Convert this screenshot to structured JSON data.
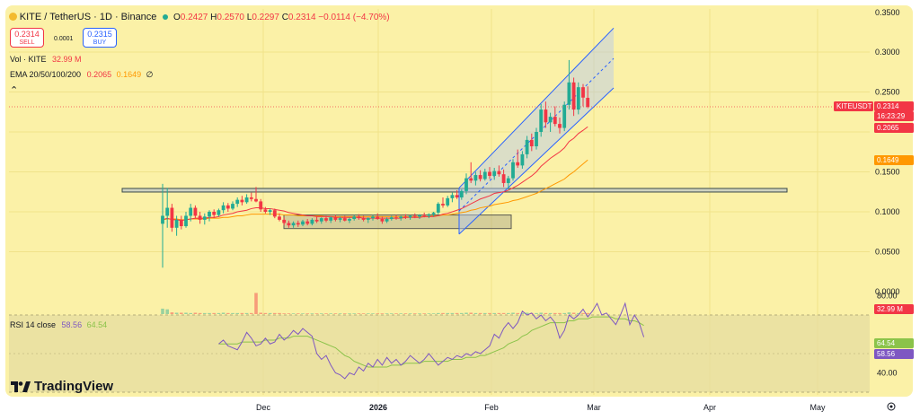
{
  "header": {
    "symbol_title": "KITE / TetherUS · 1D · Binance",
    "ohlc": [
      {
        "key": "O",
        "value": "0.2427"
      },
      {
        "key": "H",
        "value": "0.2570"
      },
      {
        "key": "L",
        "value": "0.2297"
      },
      {
        "key": "C",
        "value": "0.2314"
      }
    ],
    "change": "−0.0114 (−4.70%)"
  },
  "trade": {
    "sell_price": "0.2314",
    "sell_label": "SELL",
    "spread": "0.0001",
    "buy_price": "0.2315",
    "buy_label": "BUY"
  },
  "indicators": {
    "vol_label": "Vol · KITE",
    "vol_value": "32.99 M",
    "ema_label": "EMA 20/50/100/200",
    "ema20_value": "0.2065",
    "ema50_value": "0.1649",
    "ema_rest": "∅",
    "collapse_glyph": "⌃"
  },
  "rsi": {
    "label": "RSI 14 close",
    "rsi_value": "58.56",
    "ma_value": "64.54",
    "ticks": [
      "80.00",
      "40.00"
    ]
  },
  "price_axis": {
    "ticks": [
      "0.3000",
      "0.2500",
      "0.1500",
      "0.1000",
      "0.0500",
      "0.0000"
    ],
    "partial_top": "0.3500"
  },
  "price_tags": {
    "symbol": "KITEUSDT",
    "price": "0.2314",
    "countdown": "16:23:29",
    "ema20": "0.2065",
    "ema50": "0.1649",
    "volume": "32.99 M",
    "rsi_ma": "64.54",
    "rsi": "58.56"
  },
  "time_axis": {
    "labels": [
      "Dec",
      "2026",
      "Feb",
      "Mar",
      "Apr",
      "May"
    ]
  },
  "branding": {
    "logo_text": "TradingView"
  },
  "colors": {
    "up": "#22ab94",
    "down": "#f23645",
    "ema20": "#f23645",
    "ema50": "#ff9800",
    "rsi_line": "#7e57c2",
    "rsi_ma": "#8bc34a",
    "channel": "#2962ff",
    "background": "#fbf1a7"
  },
  "chart_data": {
    "type": "candlestick",
    "pair": "KITE/USDT",
    "timeframe": "1D",
    "ylim": [
      0.0,
      0.35
    ],
    "candles": [
      {
        "o": 0.085,
        "h": 0.135,
        "l": 0.03,
        "c": 0.095
      },
      {
        "o": 0.095,
        "h": 0.13,
        "l": 0.08,
        "c": 0.105
      },
      {
        "o": 0.105,
        "h": 0.11,
        "l": 0.075,
        "c": 0.08
      },
      {
        "o": 0.08,
        "h": 0.095,
        "l": 0.07,
        "c": 0.09
      },
      {
        "o": 0.09,
        "h": 0.095,
        "l": 0.078,
        "c": 0.082
      },
      {
        "o": 0.082,
        "h": 0.1,
        "l": 0.08,
        "c": 0.095
      },
      {
        "o": 0.095,
        "h": 0.11,
        "l": 0.088,
        "c": 0.105
      },
      {
        "o": 0.105,
        "h": 0.108,
        "l": 0.092,
        "c": 0.095
      },
      {
        "o": 0.095,
        "h": 0.1,
        "l": 0.085,
        "c": 0.09
      },
      {
        "o": 0.09,
        "h": 0.098,
        "l": 0.084,
        "c": 0.094
      },
      {
        "o": 0.094,
        "h": 0.102,
        "l": 0.088,
        "c": 0.1
      },
      {
        "o": 0.1,
        "h": 0.103,
        "l": 0.092,
        "c": 0.096
      },
      {
        "o": 0.096,
        "h": 0.104,
        "l": 0.094,
        "c": 0.102
      },
      {
        "o": 0.102,
        "h": 0.112,
        "l": 0.098,
        "c": 0.108
      },
      {
        "o": 0.108,
        "h": 0.111,
        "l": 0.1,
        "c": 0.104
      },
      {
        "o": 0.104,
        "h": 0.113,
        "l": 0.102,
        "c": 0.11
      },
      {
        "o": 0.11,
        "h": 0.118,
        "l": 0.106,
        "c": 0.115
      },
      {
        "o": 0.115,
        "h": 0.12,
        "l": 0.108,
        "c": 0.112
      },
      {
        "o": 0.112,
        "h": 0.122,
        "l": 0.11,
        "c": 0.118
      },
      {
        "o": 0.118,
        "h": 0.124,
        "l": 0.113,
        "c": 0.116
      },
      {
        "o": 0.116,
        "h": 0.131,
        "l": 0.112,
        "c": 0.113
      },
      {
        "o": 0.113,
        "h": 0.116,
        "l": 0.1,
        "c": 0.103
      },
      {
        "o": 0.103,
        "h": 0.106,
        "l": 0.098,
        "c": 0.1
      },
      {
        "o": 0.1,
        "h": 0.104,
        "l": 0.096,
        "c": 0.102
      },
      {
        "o": 0.102,
        "h": 0.104,
        "l": 0.092,
        "c": 0.094
      },
      {
        "o": 0.094,
        "h": 0.098,
        "l": 0.088,
        "c": 0.09
      },
      {
        "o": 0.09,
        "h": 0.093,
        "l": 0.083,
        "c": 0.086
      },
      {
        "o": 0.086,
        "h": 0.089,
        "l": 0.08,
        "c": 0.083
      },
      {
        "o": 0.083,
        "h": 0.088,
        "l": 0.08,
        "c": 0.086
      },
      {
        "o": 0.086,
        "h": 0.089,
        "l": 0.081,
        "c": 0.084
      },
      {
        "o": 0.084,
        "h": 0.09,
        "l": 0.082,
        "c": 0.088
      },
      {
        "o": 0.088,
        "h": 0.091,
        "l": 0.083,
        "c": 0.085
      },
      {
        "o": 0.085,
        "h": 0.092,
        "l": 0.083,
        "c": 0.09
      },
      {
        "o": 0.09,
        "h": 0.094,
        "l": 0.086,
        "c": 0.088
      },
      {
        "o": 0.088,
        "h": 0.093,
        "l": 0.085,
        "c": 0.092
      },
      {
        "o": 0.092,
        "h": 0.095,
        "l": 0.087,
        "c": 0.089
      },
      {
        "o": 0.089,
        "h": 0.094,
        "l": 0.086,
        "c": 0.093
      },
      {
        "o": 0.093,
        "h": 0.096,
        "l": 0.088,
        "c": 0.09
      },
      {
        "o": 0.09,
        "h": 0.094,
        "l": 0.087,
        "c": 0.092
      },
      {
        "o": 0.092,
        "h": 0.095,
        "l": 0.088,
        "c": 0.089
      },
      {
        "o": 0.089,
        "h": 0.093,
        "l": 0.086,
        "c": 0.091
      },
      {
        "o": 0.091,
        "h": 0.096,
        "l": 0.089,
        "c": 0.094
      },
      {
        "o": 0.094,
        "h": 0.097,
        "l": 0.09,
        "c": 0.092
      },
      {
        "o": 0.092,
        "h": 0.095,
        "l": 0.088,
        "c": 0.09
      },
      {
        "o": 0.09,
        "h": 0.093,
        "l": 0.086,
        "c": 0.092
      },
      {
        "o": 0.092,
        "h": 0.096,
        "l": 0.089,
        "c": 0.094
      },
      {
        "o": 0.094,
        "h": 0.098,
        "l": 0.09,
        "c": 0.091
      },
      {
        "o": 0.091,
        "h": 0.094,
        "l": 0.085,
        "c": 0.088
      },
      {
        "o": 0.088,
        "h": 0.093,
        "l": 0.086,
        "c": 0.091
      },
      {
        "o": 0.091,
        "h": 0.095,
        "l": 0.089,
        "c": 0.093
      },
      {
        "o": 0.093,
        "h": 0.096,
        "l": 0.09,
        "c": 0.092
      },
      {
        "o": 0.092,
        "h": 0.095,
        "l": 0.089,
        "c": 0.094
      },
      {
        "o": 0.094,
        "h": 0.097,
        "l": 0.091,
        "c": 0.093
      },
      {
        "o": 0.093,
        "h": 0.096,
        "l": 0.09,
        "c": 0.095
      },
      {
        "o": 0.095,
        "h": 0.098,
        "l": 0.092,
        "c": 0.094
      },
      {
        "o": 0.094,
        "h": 0.097,
        "l": 0.091,
        "c": 0.096
      },
      {
        "o": 0.096,
        "h": 0.099,
        "l": 0.093,
        "c": 0.095
      },
      {
        "o": 0.095,
        "h": 0.098,
        "l": 0.092,
        "c": 0.097
      },
      {
        "o": 0.097,
        "h": 0.1,
        "l": 0.094,
        "c": 0.099
      },
      {
        "o": 0.099,
        "h": 0.112,
        "l": 0.097,
        "c": 0.11
      },
      {
        "o": 0.11,
        "h": 0.118,
        "l": 0.105,
        "c": 0.108
      },
      {
        "o": 0.108,
        "h": 0.12,
        "l": 0.106,
        "c": 0.117
      },
      {
        "o": 0.117,
        "h": 0.124,
        "l": 0.112,
        "c": 0.121
      },
      {
        "o": 0.121,
        "h": 0.127,
        "l": 0.116,
        "c": 0.118
      },
      {
        "o": 0.118,
        "h": 0.128,
        "l": 0.115,
        "c": 0.126
      },
      {
        "o": 0.126,
        "h": 0.148,
        "l": 0.122,
        "c": 0.142
      },
      {
        "o": 0.142,
        "h": 0.162,
        "l": 0.136,
        "c": 0.139
      },
      {
        "o": 0.139,
        "h": 0.15,
        "l": 0.133,
        "c": 0.146
      },
      {
        "o": 0.146,
        "h": 0.152,
        "l": 0.138,
        "c": 0.141
      },
      {
        "o": 0.141,
        "h": 0.154,
        "l": 0.139,
        "c": 0.15
      },
      {
        "o": 0.15,
        "h": 0.156,
        "l": 0.141,
        "c": 0.145
      },
      {
        "o": 0.145,
        "h": 0.155,
        "l": 0.14,
        "c": 0.151
      },
      {
        "o": 0.151,
        "h": 0.158,
        "l": 0.144,
        "c": 0.147
      },
      {
        "o": 0.147,
        "h": 0.153,
        "l": 0.131,
        "c": 0.136
      },
      {
        "o": 0.136,
        "h": 0.145,
        "l": 0.128,
        "c": 0.142
      },
      {
        "o": 0.142,
        "h": 0.166,
        "l": 0.139,
        "c": 0.162
      },
      {
        "o": 0.162,
        "h": 0.178,
        "l": 0.155,
        "c": 0.158
      },
      {
        "o": 0.158,
        "h": 0.176,
        "l": 0.154,
        "c": 0.172
      },
      {
        "o": 0.172,
        "h": 0.195,
        "l": 0.167,
        "c": 0.19
      },
      {
        "o": 0.19,
        "h": 0.198,
        "l": 0.176,
        "c": 0.182
      },
      {
        "o": 0.182,
        "h": 0.205,
        "l": 0.178,
        "c": 0.2
      },
      {
        "o": 0.2,
        "h": 0.235,
        "l": 0.194,
        "c": 0.228
      },
      {
        "o": 0.228,
        "h": 0.238,
        "l": 0.205,
        "c": 0.212
      },
      {
        "o": 0.212,
        "h": 0.224,
        "l": 0.2,
        "c": 0.219
      },
      {
        "o": 0.219,
        "h": 0.232,
        "l": 0.207,
        "c": 0.21
      },
      {
        "o": 0.21,
        "h": 0.218,
        "l": 0.198,
        "c": 0.205
      },
      {
        "o": 0.205,
        "h": 0.238,
        "l": 0.201,
        "c": 0.234
      },
      {
        "o": 0.234,
        "h": 0.29,
        "l": 0.228,
        "c": 0.262
      },
      {
        "o": 0.262,
        "h": 0.268,
        "l": 0.22,
        "c": 0.228
      },
      {
        "o": 0.228,
        "h": 0.262,
        "l": 0.222,
        "c": 0.256
      },
      {
        "o": 0.256,
        "h": 0.26,
        "l": 0.232,
        "c": 0.243
      },
      {
        "o": 0.2427,
        "h": 0.257,
        "l": 0.2297,
        "c": 0.2314
      }
    ],
    "volume": [
      16,
      14,
      5,
      4,
      4,
      4,
      3,
      4,
      3,
      3,
      3,
      3,
      3,
      4,
      3,
      3,
      3,
      3,
      3,
      3,
      62,
      4,
      3,
      3,
      3,
      3,
      2,
      2,
      2,
      2,
      2,
      2,
      2,
      2,
      2,
      2,
      2,
      2,
      2,
      2,
      2,
      2,
      2,
      2,
      2,
      2,
      2,
      2,
      2,
      2,
      2,
      2,
      2,
      2,
      2,
      2,
      2,
      2,
      2,
      3,
      3,
      3,
      3,
      3,
      3,
      4,
      4,
      3,
      3,
      3,
      3,
      3,
      3,
      3,
      3,
      4,
      3,
      3,
      4,
      3,
      3,
      4,
      3,
      3,
      3,
      3,
      3,
      5,
      4,
      3,
      3,
      3
    ],
    "ema20": [
      0.09,
      0.092,
      0.09,
      0.09,
      0.089,
      0.09,
      0.091,
      0.092,
      0.092,
      0.092,
      0.093,
      0.093,
      0.094,
      0.096,
      0.097,
      0.098,
      0.1,
      0.101,
      0.102,
      0.104,
      0.105,
      0.105,
      0.104,
      0.104,
      0.103,
      0.102,
      0.101,
      0.099,
      0.098,
      0.097,
      0.096,
      0.095,
      0.095,
      0.094,
      0.094,
      0.094,
      0.094,
      0.093,
      0.093,
      0.093,
      0.093,
      0.093,
      0.093,
      0.092,
      0.092,
      0.092,
      0.092,
      0.092,
      0.092,
      0.092,
      0.092,
      0.092,
      0.093,
      0.093,
      0.093,
      0.093,
      0.094,
      0.094,
      0.094,
      0.095,
      0.097,
      0.098,
      0.1,
      0.102,
      0.104,
      0.107,
      0.11,
      0.113,
      0.116,
      0.118,
      0.12,
      0.123,
      0.124,
      0.125,
      0.127,
      0.13,
      0.133,
      0.137,
      0.141,
      0.145,
      0.15,
      0.157,
      0.162,
      0.167,
      0.171,
      0.175,
      0.18,
      0.188,
      0.192,
      0.198,
      0.202,
      0.2065
    ],
    "ema50": [
      0.09,
      0.091,
      0.091,
      0.091,
      0.09,
      0.09,
      0.091,
      0.091,
      0.091,
      0.091,
      0.092,
      0.092,
      0.092,
      0.093,
      0.093,
      0.094,
      0.095,
      0.095,
      0.096,
      0.097,
      0.097,
      0.097,
      0.097,
      0.097,
      0.097,
      0.097,
      0.096,
      0.096,
      0.096,
      0.095,
      0.095,
      0.095,
      0.095,
      0.095,
      0.095,
      0.094,
      0.094,
      0.094,
      0.094,
      0.094,
      0.094,
      0.094,
      0.094,
      0.094,
      0.094,
      0.094,
      0.094,
      0.094,
      0.094,
      0.094,
      0.094,
      0.094,
      0.094,
      0.094,
      0.094,
      0.094,
      0.094,
      0.094,
      0.095,
      0.095,
      0.096,
      0.096,
      0.097,
      0.098,
      0.099,
      0.1,
      0.102,
      0.103,
      0.105,
      0.106,
      0.107,
      0.109,
      0.11,
      0.111,
      0.112,
      0.114,
      0.115,
      0.117,
      0.119,
      0.121,
      0.123,
      0.126,
      0.129,
      0.132,
      0.135,
      0.138,
      0.141,
      0.146,
      0.15,
      0.155,
      0.16,
      0.1649
    ],
    "rsi": [
      55,
      57,
      54,
      53,
      52,
      56,
      61,
      58,
      54,
      55,
      58,
      55,
      56,
      60,
      57,
      59,
      62,
      60,
      63,
      61,
      59,
      50,
      47,
      49,
      44,
      40,
      39,
      37,
      40,
      39,
      43,
      41,
      45,
      43,
      47,
      44,
      48,
      45,
      47,
      44,
      46,
      49,
      47,
      45,
      47,
      50,
      47,
      44,
      46,
      48,
      47,
      49,
      48,
      50,
      49,
      51,
      50,
      52,
      54,
      60,
      58,
      63,
      66,
      63,
      66,
      72,
      70,
      71,
      68,
      70,
      67,
      69,
      66,
      58,
      62,
      70,
      68,
      70,
      73,
      69,
      72,
      76,
      70,
      71,
      68,
      65,
      70,
      76,
      65,
      70,
      66,
      58.56
    ],
    "rsi_ma": [
      55,
      55,
      55,
      55,
      55,
      56,
      56,
      56,
      56,
      56,
      57,
      57,
      57,
      58,
      58,
      58,
      59,
      59,
      59,
      59,
      58,
      57,
      56,
      55,
      54,
      53,
      51,
      49,
      48,
      46,
      45,
      44,
      43,
      43,
      43,
      43,
      43,
      44,
      44,
      44,
      45,
      45,
      45,
      45,
      46,
      46,
      46,
      46,
      46,
      46,
      47,
      47,
      47,
      48,
      48,
      48,
      49,
      49,
      50,
      51,
      52,
      53,
      55,
      56,
      57,
      59,
      60,
      62,
      63,
      64,
      65,
      66,
      66,
      66,
      66,
      67,
      67,
      68,
      68,
      68,
      69,
      69,
      69,
      69,
      69,
      68,
      68,
      68,
      67,
      67,
      66,
      64.54
    ],
    "horizontal_level": 0.127,
    "accumulation_range": [
      0.079,
      0.096
    ],
    "rising_channel": {
      "upper": [
        0.13,
        0.33
      ],
      "lower": [
        0.072,
        0.255
      ],
      "mid": [
        0.101,
        0.292
      ]
    }
  }
}
